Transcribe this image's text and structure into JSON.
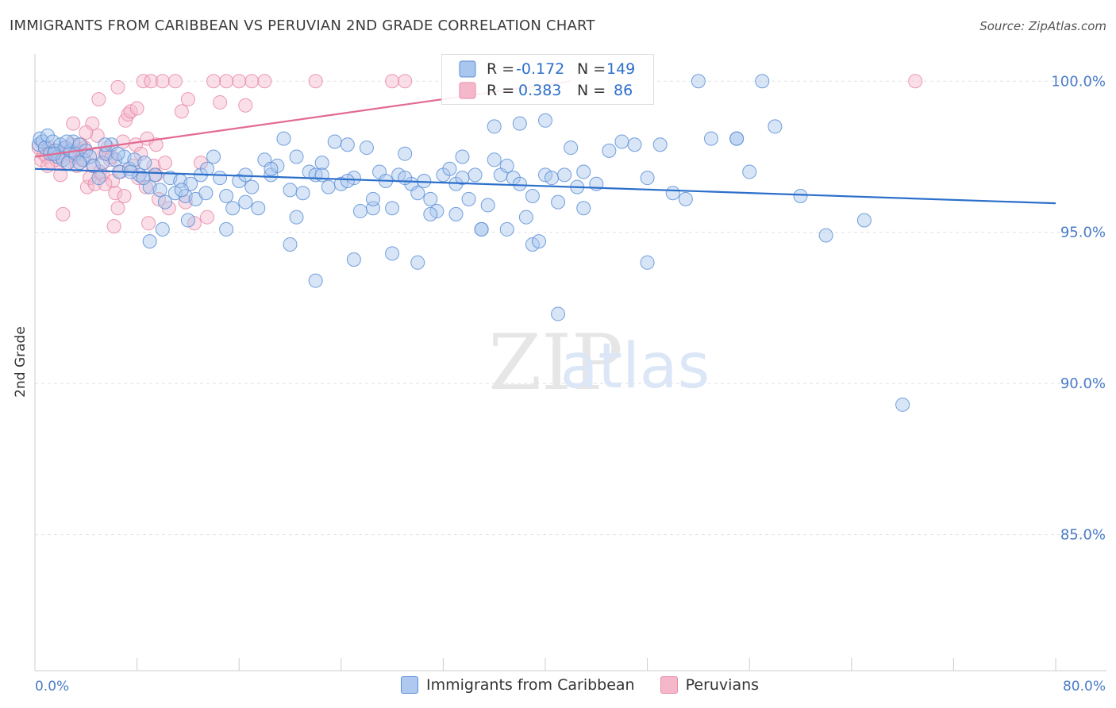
{
  "header": {
    "title": "IMMIGRANTS FROM CARIBBEAN VS PERUVIAN 2ND GRADE CORRELATION CHART",
    "source": "Source: ZipAtlas.com"
  },
  "watermark": {
    "zip": "ZIP",
    "atlas": "atlas"
  },
  "legend_box": {
    "rows": [
      {
        "r_label": "R =",
        "r_value": "-0.172",
        "n_label": "N =",
        "n_value": "149"
      },
      {
        "r_label": "R =",
        "r_value": "0.383",
        "n_label": "N =",
        "n_value": "86"
      }
    ]
  },
  "bottom_legend": {
    "items": [
      {
        "label": "Immigrants from Caribbean",
        "color": "#aec8ef"
      },
      {
        "label": "Peruvians",
        "color": "#f5b8cb"
      }
    ]
  },
  "colors": {
    "blue_fill": "#a9c6ee",
    "blue_stroke": "#5b8fd6",
    "blue_line": "#2c6fcb",
    "pink_fill": "#f5b8cb",
    "pink_stroke": "#e88aa6",
    "pink_line": "#e36a92",
    "tick_text": "#4a7cc9",
    "legend_value": "#2c6fcb"
  },
  "chart_data": {
    "type": "scatter",
    "title": "IMMIGRANTS FROM CARIBBEAN VS PERUVIAN 2ND GRADE CORRELATION CHART",
    "xlabel": "",
    "ylabel": "2nd Grade",
    "xlim": [
      0,
      80
    ],
    "ylim": [
      80.5,
      100.9
    ],
    "x_tick_labels": [
      "0.0%",
      "80.0%"
    ],
    "y_ticks": [
      85,
      90,
      95,
      100
    ],
    "y_tick_labels": [
      "85.0%",
      "90.0%",
      "95.0%",
      "100.0%"
    ],
    "grid": "horizontal dashed",
    "series": [
      {
        "name": "Immigrants from Caribbean",
        "r": -0.172,
        "n": 149,
        "trend": {
          "x": [
            0,
            80
          ],
          "y": [
            97.1,
            95.96
          ]
        },
        "points": [
          [
            0.3,
            97.9
          ],
          [
            0.4,
            98.1
          ],
          [
            0.6,
            98.0
          ],
          [
            0.8,
            97.8
          ],
          [
            1.0,
            98.2
          ],
          [
            1.2,
            97.6
          ],
          [
            1.4,
            98.0
          ],
          [
            1.6,
            97.7
          ],
          [
            1.8,
            97.5
          ],
          [
            2.0,
            97.9
          ],
          [
            2.2,
            97.4
          ],
          [
            2.4,
            97.8
          ],
          [
            2.6,
            97.3
          ],
          [
            2.8,
            97.7
          ],
          [
            3.0,
            98.0
          ],
          [
            3.2,
            97.6
          ],
          [
            3.5,
            97.9
          ],
          [
            3.8,
            97.4
          ],
          [
            4.0,
            97.7
          ],
          [
            4.3,
            97.5
          ],
          [
            4.6,
            97.2
          ],
          [
            5.0,
            96.8
          ],
          [
            5.3,
            97.3
          ],
          [
            5.6,
            97.6
          ],
          [
            6.0,
            97.9
          ],
          [
            6.3,
            97.4
          ],
          [
            6.6,
            97.0
          ],
          [
            7.0,
            97.5
          ],
          [
            7.4,
            97.1
          ],
          [
            7.8,
            97.4
          ],
          [
            8.2,
            96.9
          ],
          [
            8.6,
            97.3
          ],
          [
            9.0,
            96.5
          ],
          [
            9.4,
            96.9
          ],
          [
            9.8,
            96.4
          ],
          [
            10.2,
            96.0
          ],
          [
            10.6,
            96.8
          ],
          [
            11.0,
            96.3
          ],
          [
            11.4,
            96.7
          ],
          [
            11.8,
            96.2
          ],
          [
            12.2,
            96.6
          ],
          [
            12.6,
            96.1
          ],
          [
            13.0,
            96.9
          ],
          [
            13.4,
            96.3
          ],
          [
            14.0,
            97.5
          ],
          [
            14.5,
            96.8
          ],
          [
            15.0,
            96.2
          ],
          [
            15.5,
            95.8
          ],
          [
            16.0,
            96.7
          ],
          [
            16.5,
            96.0
          ],
          [
            17.0,
            96.5
          ],
          [
            17.5,
            95.8
          ],
          [
            18.0,
            97.4
          ],
          [
            18.5,
            96.9
          ],
          [
            19.0,
            97.2
          ],
          [
            19.5,
            98.1
          ],
          [
            20.0,
            96.4
          ],
          [
            20.5,
            95.5
          ],
          [
            21.0,
            96.3
          ],
          [
            21.5,
            97.0
          ],
          [
            22.0,
            96.9
          ],
          [
            22.5,
            97.3
          ],
          [
            23.0,
            96.5
          ],
          [
            23.5,
            98.0
          ],
          [
            24.0,
            96.6
          ],
          [
            24.5,
            97.9
          ],
          [
            25.0,
            96.8
          ],
          [
            25.5,
            95.7
          ],
          [
            26.0,
            97.8
          ],
          [
            26.5,
            95.8
          ],
          [
            27.0,
            97.0
          ],
          [
            27.5,
            96.7
          ],
          [
            28.0,
            95.8
          ],
          [
            28.5,
            96.9
          ],
          [
            29.0,
            97.6
          ],
          [
            29.5,
            96.6
          ],
          [
            30.0,
            96.3
          ],
          [
            30.5,
            96.7
          ],
          [
            31.0,
            96.1
          ],
          [
            31.5,
            95.7
          ],
          [
            32.0,
            96.9
          ],
          [
            32.5,
            97.1
          ],
          [
            33.0,
            96.6
          ],
          [
            33.5,
            97.5
          ],
          [
            34.0,
            96.1
          ],
          [
            34.5,
            96.9
          ],
          [
            35.0,
            95.1
          ],
          [
            35.5,
            95.9
          ],
          [
            36.0,
            97.4
          ],
          [
            36.5,
            96.9
          ],
          [
            37.0,
            97.2
          ],
          [
            37.5,
            96.8
          ],
          [
            38.0,
            96.6
          ],
          [
            38.5,
            95.5
          ],
          [
            39.0,
            94.6
          ],
          [
            39.5,
            94.7
          ],
          [
            40.0,
            96.9
          ],
          [
            40.5,
            96.8
          ],
          [
            41.0,
            92.3
          ],
          [
            41.5,
            96.9
          ],
          [
            42.0,
            97.8
          ],
          [
            42.5,
            96.5
          ],
          [
            43.0,
            97.0
          ],
          [
            44.0,
            96.6
          ],
          [
            45.0,
            97.7
          ],
          [
            46.0,
            98.0
          ],
          [
            47.0,
            97.9
          ],
          [
            48.0,
            96.8
          ],
          [
            49.0,
            97.9
          ],
          [
            50.0,
            96.3
          ],
          [
            51.0,
            96.1
          ],
          [
            52.0,
            100.0
          ],
          [
            55.0,
            98.1
          ],
          [
            56.0,
            97.0
          ],
          [
            57.0,
            100.0
          ],
          [
            58.0,
            98.5
          ],
          [
            62.0,
            94.9
          ],
          [
            65.0,
            95.4
          ],
          [
            68.0,
            89.3
          ],
          [
            9.0,
            94.7
          ],
          [
            10.0,
            95.1
          ],
          [
            12.0,
            95.4
          ],
          [
            15.0,
            95.1
          ],
          [
            20.0,
            94.6
          ],
          [
            22.0,
            93.4
          ],
          [
            25.0,
            94.1
          ],
          [
            28.0,
            94.3
          ],
          [
            30.0,
            94.0
          ],
          [
            33.0,
            95.6
          ],
          [
            35.0,
            95.1
          ],
          [
            37.0,
            95.1
          ],
          [
            39.0,
            96.2
          ],
          [
            41.0,
            96.0
          ],
          [
            43.0,
            95.8
          ],
          [
            48.0,
            94.0
          ],
          [
            53.0,
            98.1
          ],
          [
            55.0,
            98.1
          ],
          [
            60.0,
            96.2
          ],
          [
            1.5,
            97.6
          ],
          [
            2.5,
            98.0
          ],
          [
            3.5,
            97.3
          ],
          [
            5.5,
            97.9
          ],
          [
            6.5,
            97.6
          ],
          [
            7.5,
            97.0
          ],
          [
            8.5,
            96.8
          ],
          [
            11.5,
            96.4
          ],
          [
            13.5,
            97.1
          ],
          [
            16.5,
            96.9
          ],
          [
            18.5,
            97.1
          ],
          [
            20.5,
            97.5
          ],
          [
            22.5,
            96.9
          ],
          [
            24.5,
            96.7
          ],
          [
            26.5,
            96.1
          ],
          [
            29.0,
            96.8
          ],
          [
            31.0,
            95.6
          ],
          [
            33.5,
            96.8
          ],
          [
            36.0,
            98.5
          ],
          [
            38.0,
            98.6
          ],
          [
            40.0,
            98.7
          ]
        ]
      },
      {
        "name": "Peruvians",
        "r": 0.383,
        "n": 86,
        "trend": {
          "x": [
            0,
            42
          ],
          "y": [
            97.5,
            100.0
          ]
        },
        "points": [
          [
            0.3,
            97.8
          ],
          [
            0.5,
            97.4
          ],
          [
            0.7,
            97.6
          ],
          [
            0.9,
            97.5
          ],
          [
            1.1,
            97.8
          ],
          [
            1.3,
            97.3
          ],
          [
            1.5,
            97.7
          ],
          [
            1.7,
            97.4
          ],
          [
            1.9,
            97.6
          ],
          [
            2.1,
            97.5
          ],
          [
            2.3,
            97.8
          ],
          [
            2.5,
            97.3
          ],
          [
            2.7,
            97.6
          ],
          [
            2.9,
            97.9
          ],
          [
            3.1,
            97.5
          ],
          [
            3.3,
            97.2
          ],
          [
            3.5,
            97.7
          ],
          [
            3.7,
            97.4
          ],
          [
            3.9,
            97.8
          ],
          [
            4.1,
            96.5
          ],
          [
            4.3,
            96.8
          ],
          [
            4.5,
            97.2
          ],
          [
            4.7,
            96.6
          ],
          [
            4.9,
            98.2
          ],
          [
            5.1,
            97.0
          ],
          [
            5.3,
            96.9
          ],
          [
            5.5,
            97.6
          ],
          [
            5.7,
            97.8
          ],
          [
            5.9,
            97.4
          ],
          [
            6.1,
            96.7
          ],
          [
            6.3,
            96.3
          ],
          [
            6.5,
            95.8
          ],
          [
            6.7,
            97.0
          ],
          [
            6.9,
            98.0
          ],
          [
            7.1,
            98.7
          ],
          [
            7.3,
            98.9
          ],
          [
            7.5,
            99.0
          ],
          [
            7.7,
            97.2
          ],
          [
            7.9,
            97.9
          ],
          [
            8.1,
            96.8
          ],
          [
            8.3,
            97.6
          ],
          [
            8.5,
            100.0
          ],
          [
            8.7,
            96.5
          ],
          [
            8.9,
            95.3
          ],
          [
            9.1,
            100.0
          ],
          [
            9.3,
            97.2
          ],
          [
            9.5,
            96.9
          ],
          [
            9.7,
            96.1
          ],
          [
            10.0,
            100.0
          ],
          [
            10.5,
            95.8
          ],
          [
            11.0,
            100.0
          ],
          [
            11.5,
            99.0
          ],
          [
            12.0,
            99.4
          ],
          [
            12.5,
            95.3
          ],
          [
            13.0,
            97.3
          ],
          [
            14.0,
            100.0
          ],
          [
            15.0,
            100.0
          ],
          [
            16.0,
            100.0
          ],
          [
            17.0,
            100.0
          ],
          [
            18.0,
            100.0
          ],
          [
            22.0,
            100.0
          ],
          [
            28.0,
            100.0
          ],
          [
            29.0,
            100.0
          ],
          [
            69.0,
            100.0
          ],
          [
            3.0,
            98.6
          ],
          [
            4.5,
            98.6
          ],
          [
            5.0,
            99.4
          ],
          [
            6.5,
            99.8
          ],
          [
            2.2,
            95.6
          ],
          [
            6.2,
            95.2
          ],
          [
            8.0,
            99.1
          ],
          [
            1.0,
            97.2
          ],
          [
            2.0,
            96.9
          ],
          [
            3.6,
            97.9
          ],
          [
            4.8,
            97.6
          ],
          [
            6.0,
            97.5
          ],
          [
            7.0,
            96.2
          ],
          [
            8.8,
            98.1
          ],
          [
            10.2,
            97.3
          ],
          [
            11.8,
            96.0
          ],
          [
            13.5,
            95.5
          ],
          [
            14.5,
            99.3
          ],
          [
            16.5,
            99.2
          ],
          [
            9.5,
            97.9
          ],
          [
            5.5,
            96.6
          ],
          [
            4.0,
            98.3
          ]
        ]
      }
    ]
  }
}
